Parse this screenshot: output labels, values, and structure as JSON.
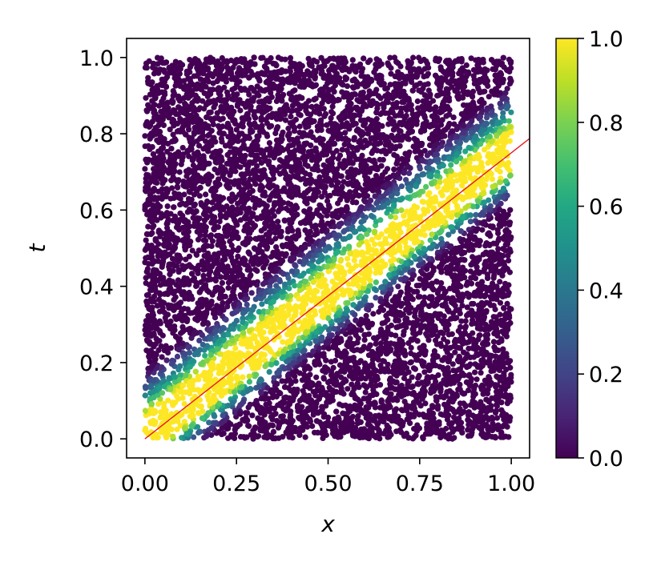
{
  "chart_data": {
    "type": "scatter",
    "title": "",
    "xlabel": "x",
    "ylabel": "t",
    "xlim": [
      -0.05,
      1.05
    ],
    "ylim": [
      -0.05,
      1.05
    ],
    "x_ticks": [
      "0.00",
      "0.25",
      "0.50",
      "0.75",
      "1.00"
    ],
    "y_ticks": [
      "0.0",
      "0.2",
      "0.4",
      "0.6",
      "0.8",
      "1.0"
    ],
    "grid": false,
    "colormap": "viridis",
    "color_range": [
      0.0,
      1.0
    ],
    "colorbar_ticks": [
      "0.0",
      "0.2",
      "0.4",
      "0.6",
      "0.8",
      "1.0"
    ],
    "scatter_domain": {
      "x": [
        0.0,
        1.0
      ],
      "t": [
        0.0,
        1.0
      ]
    },
    "point_count": 10000,
    "band": {
      "center_slope": 0.75,
      "core_halfwidth": 0.045,
      "fade_width": 0.09,
      "upper_bias": 1.4
    },
    "reference_line": {
      "x": [
        0.0,
        1.05
      ],
      "t": [
        0.0,
        0.7875
      ],
      "color": "#e8141e"
    },
    "colors": {
      "low": "#440154",
      "high": "#fde725",
      "line": "#e8141e"
    }
  }
}
